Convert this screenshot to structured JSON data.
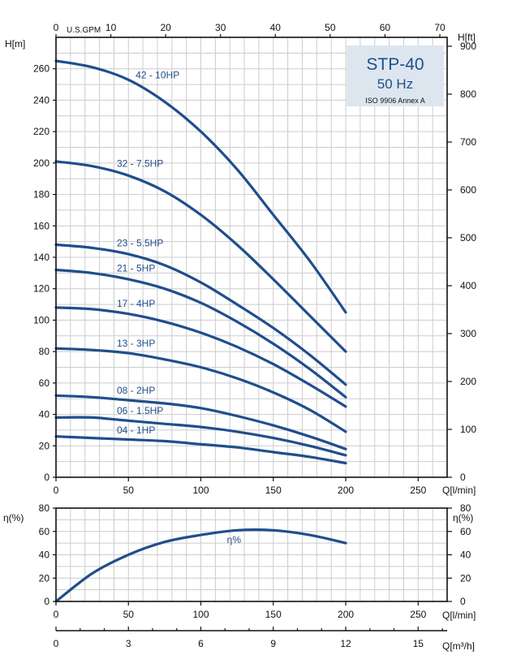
{
  "info_box": {
    "title": "STP-40",
    "frequency": "50 Hz",
    "standard": "ISO 9906 Annex A",
    "bg_color": "#dde6ef",
    "text_color": "#1f4e8c"
  },
  "chart_data": [
    {
      "type": "line",
      "name": "head",
      "xlabel": "Q[l/min]",
      "ylabel": "H[m]",
      "y2label": "H[ft]",
      "x2label": "U.S.GPM",
      "xlim": [
        0,
        270
      ],
      "ylim": [
        0,
        280
      ],
      "xticks": [
        0,
        50,
        100,
        150,
        200,
        250
      ],
      "yticks": [
        0,
        20,
        40,
        60,
        80,
        100,
        120,
        140,
        160,
        180,
        200,
        220,
        240,
        260
      ],
      "y2lim": [
        0,
        918.6
      ],
      "y2ticks": [
        0,
        100,
        200,
        300,
        400,
        500,
        600,
        700,
        800,
        900
      ],
      "x2lim": [
        0,
        71.33
      ],
      "x2ticks": [
        0,
        10,
        20,
        30,
        40,
        50,
        60,
        70
      ],
      "grid": true,
      "series": [
        {
          "name": "42 - 10HP",
          "x": [
            0,
            25,
            50,
            75,
            100,
            125,
            150,
            175,
            200
          ],
          "y": [
            265,
            261,
            253,
            239,
            220,
            196,
            167,
            138,
            105
          ]
        },
        {
          "name": "32 - 7.5HP",
          "x": [
            0,
            25,
            50,
            75,
            100,
            125,
            150,
            175,
            200
          ],
          "y": [
            201,
            198,
            192,
            182,
            167,
            148,
            126,
            103,
            80
          ]
        },
        {
          "name": "23 - 5.5HP",
          "x": [
            0,
            25,
            50,
            75,
            100,
            125,
            150,
            175,
            200
          ],
          "y": [
            148,
            146,
            142,
            135,
            124,
            110,
            95,
            78,
            59
          ]
        },
        {
          "name": "21 - 5HP",
          "x": [
            0,
            25,
            50,
            75,
            100,
            125,
            150,
            175,
            200
          ],
          "y": [
            132,
            130,
            126,
            120,
            111,
            99,
            85,
            69,
            51
          ]
        },
        {
          "name": "17 - 4HP",
          "x": [
            0,
            25,
            50,
            75,
            100,
            125,
            150,
            175,
            200
          ],
          "y": [
            108,
            107,
            104,
            99,
            92,
            83,
            72,
            59,
            45
          ]
        },
        {
          "name": "13 - 3HP",
          "x": [
            0,
            25,
            50,
            75,
            100,
            125,
            150,
            175,
            200
          ],
          "y": [
            82,
            81,
            79,
            75,
            70,
            63,
            54,
            43,
            29
          ]
        },
        {
          "name": "08 - 2HP",
          "x": [
            0,
            25,
            50,
            75,
            100,
            125,
            150,
            175,
            200
          ],
          "y": [
            52,
            51,
            49,
            47,
            44,
            39,
            33,
            26,
            18
          ]
        },
        {
          "name": "06 - 1.5HP",
          "x": [
            0,
            25,
            50,
            75,
            100,
            125,
            150,
            175,
            200
          ],
          "y": [
            38,
            38,
            36,
            34,
            32,
            29,
            25,
            20,
            14
          ]
        },
        {
          "name": "04 - 1HP",
          "x": [
            0,
            25,
            50,
            75,
            100,
            125,
            150,
            175,
            200
          ],
          "y": [
            26,
            25,
            24,
            23,
            21,
            19,
            16,
            13,
            9
          ]
        }
      ]
    },
    {
      "type": "line",
      "name": "efficiency",
      "xlabel": "Q[l/min]",
      "ylabel": "η(%)",
      "y2label": "η(%)",
      "xlim": [
        0,
        270
      ],
      "ylim": [
        0,
        80
      ],
      "xticks": [
        0,
        50,
        100,
        150,
        200,
        250
      ],
      "yticks": [
        0,
        20,
        40,
        60,
        80
      ],
      "grid": true,
      "series": [
        {
          "name": "η%",
          "x": [
            0,
            25,
            50,
            75,
            100,
            125,
            150,
            175,
            200
          ],
          "y": [
            0,
            24,
            40,
            51,
            57,
            61,
            61,
            57,
            50
          ]
        }
      ]
    },
    {
      "type": "axis",
      "name": "flow-m3h",
      "xlabel": "Q[m³/h]",
      "xlim": [
        0,
        16.2
      ],
      "xticks": [
        0,
        3,
        6,
        9,
        12,
        15
      ]
    }
  ]
}
